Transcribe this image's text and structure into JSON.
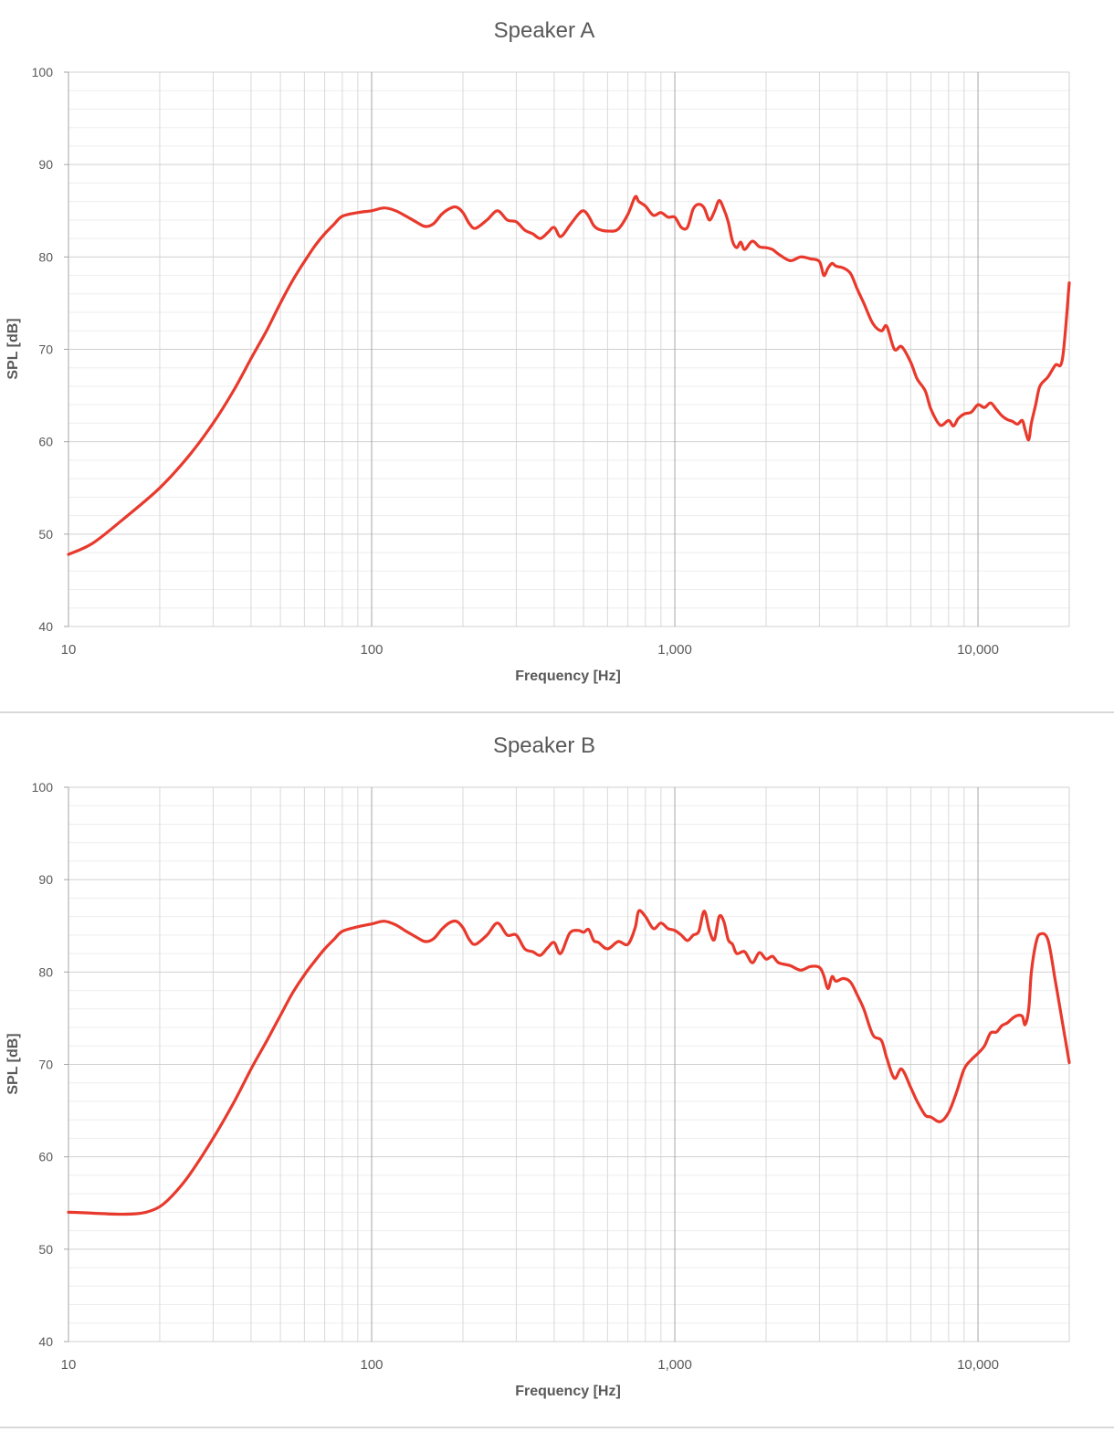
{
  "chart_data": [
    {
      "type": "line",
      "title": "Speaker A",
      "xlabel": "Frequency [Hz]",
      "ylabel": "SPL [dB]",
      "xscale": "log",
      "xlim": [
        10,
        20000
      ],
      "ylim": [
        40,
        100
      ],
      "x_ticks": [
        10,
        100,
        1000,
        10000
      ],
      "x_tick_labels": [
        "10",
        "100",
        "1,000",
        "10,000"
      ],
      "y_ticks": [
        40,
        50,
        60,
        70,
        80,
        90,
        100
      ],
      "y_tick_labels": [
        "40",
        "50",
        "60",
        "70",
        "80",
        "90",
        "100"
      ],
      "grid": true,
      "legend": "none",
      "line_color": "#e8392c",
      "series": [
        {
          "x": [
            10,
            12,
            15,
            20,
            25,
            30,
            35,
            40,
            45,
            50,
            55,
            60,
            65,
            70,
            75,
            80,
            90,
            100,
            110,
            120,
            130,
            140,
            150,
            160,
            170,
            180,
            190,
            200,
            210,
            220,
            240,
            260,
            280,
            300,
            320,
            340,
            360,
            380,
            400,
            420,
            450,
            480,
            500,
            520,
            540,
            560,
            600,
            650,
            700,
            740,
            760,
            800,
            850,
            900,
            950,
            1000,
            1050,
            1100,
            1150,
            1200,
            1250,
            1300,
            1350,
            1400,
            1450,
            1500,
            1550,
            1600,
            1650,
            1700,
            1800,
            1900,
            2000,
            2100,
            2200,
            2400,
            2600,
            2800,
            3000,
            3100,
            3200,
            3300,
            3400,
            3600,
            3800,
            4000,
            4200,
            4500,
            4800,
            5000,
            5300,
            5600,
            6000,
            6300,
            6700,
            7000,
            7500,
            8000,
            8300,
            8600,
            9000,
            9500,
            10000,
            10500,
            11000,
            11500,
            12000,
            12500,
            13000,
            13500,
            14000,
            14300,
            14700,
            15000,
            15500,
            16000,
            17000,
            18000,
            19000,
            20000
          ],
          "y": [
            47.8,
            49.0,
            51.5,
            55.0,
            58.5,
            62.0,
            65.5,
            69.0,
            72.0,
            75.0,
            77.5,
            79.5,
            81.2,
            82.5,
            83.5,
            84.4,
            84.8,
            85.0,
            85.3,
            85.0,
            84.4,
            83.8,
            83.3,
            83.6,
            84.6,
            85.2,
            85.4,
            84.8,
            83.6,
            83.1,
            84.0,
            85.0,
            84.0,
            83.8,
            82.9,
            82.5,
            82.0,
            82.6,
            83.2,
            82.2,
            83.4,
            84.6,
            85.0,
            84.4,
            83.4,
            83.0,
            82.8,
            83.0,
            84.6,
            86.5,
            86.0,
            85.5,
            84.5,
            84.8,
            84.3,
            84.3,
            83.2,
            83.2,
            85.2,
            85.7,
            85.3,
            84.0,
            84.9,
            86.1,
            85.2,
            83.8,
            81.7,
            81.0,
            81.6,
            80.8,
            81.7,
            81.1,
            81.0,
            80.8,
            80.3,
            79.6,
            80.0,
            79.8,
            79.5,
            78.0,
            78.8,
            79.3,
            79.0,
            78.8,
            78.2,
            76.5,
            75.0,
            72.8,
            72.0,
            72.5,
            70.0,
            70.3,
            68.6,
            66.8,
            65.5,
            63.5,
            61.8,
            62.3,
            61.7,
            62.5,
            63.0,
            63.2,
            64.0,
            63.7,
            64.2,
            63.5,
            62.8,
            62.4,
            62.2,
            61.9,
            62.3,
            61.3,
            60.2,
            62.0,
            64.0,
            66.0,
            67.0,
            68.3,
            69.0,
            77.2
          ]
        }
      ]
    },
    {
      "type": "line",
      "title": "Speaker B",
      "xlabel": "Frequency [Hz]",
      "ylabel": "SPL [dB]",
      "xscale": "log",
      "xlim": [
        10,
        20000
      ],
      "ylim": [
        40,
        100
      ],
      "x_ticks": [
        10,
        100,
        1000,
        10000
      ],
      "x_tick_labels": [
        "10",
        "100",
        "1,000",
        "10,000"
      ],
      "y_ticks": [
        40,
        50,
        60,
        70,
        80,
        90,
        100
      ],
      "y_tick_labels": [
        "40",
        "50",
        "60",
        "70",
        "80",
        "90",
        "100"
      ],
      "grid": true,
      "legend": "none",
      "line_color": "#e8392c",
      "series": [
        {
          "x": [
            10,
            12,
            14,
            16,
            18,
            20,
            22,
            25,
            30,
            35,
            40,
            45,
            50,
            55,
            60,
            65,
            70,
            75,
            80,
            90,
            100,
            110,
            120,
            130,
            140,
            150,
            160,
            170,
            180,
            190,
            200,
            210,
            220,
            240,
            260,
            280,
            300,
            320,
            340,
            360,
            380,
            400,
            420,
            450,
            480,
            500,
            520,
            540,
            560,
            600,
            650,
            700,
            740,
            760,
            800,
            850,
            900,
            950,
            1000,
            1050,
            1100,
            1150,
            1200,
            1250,
            1300,
            1350,
            1400,
            1450,
            1500,
            1550,
            1600,
            1700,
            1800,
            1900,
            2000,
            2100,
            2200,
            2400,
            2600,
            2800,
            3000,
            3100,
            3200,
            3300,
            3400,
            3600,
            3800,
            4000,
            4200,
            4500,
            4800,
            5000,
            5300,
            5600,
            6000,
            6300,
            6700,
            7000,
            7500,
            8000,
            8500,
            9000,
            9500,
            10000,
            10500,
            11000,
            11500,
            12000,
            12500,
            13000,
            13500,
            14000,
            14300,
            14700,
            15000,
            15500,
            16000,
            17000,
            18000,
            19000,
            20000
          ],
          "y": [
            54.0,
            53.9,
            53.8,
            53.8,
            54.0,
            54.6,
            55.8,
            58.0,
            62.0,
            65.8,
            69.5,
            72.5,
            75.3,
            77.8,
            79.7,
            81.2,
            82.5,
            83.5,
            84.4,
            84.9,
            85.2,
            85.5,
            85.1,
            84.4,
            83.8,
            83.3,
            83.6,
            84.6,
            85.3,
            85.5,
            84.8,
            83.5,
            83.0,
            84.0,
            85.3,
            84.0,
            84.0,
            82.5,
            82.2,
            81.8,
            82.6,
            83.2,
            82.0,
            84.2,
            84.5,
            84.3,
            84.6,
            83.4,
            83.2,
            82.5,
            83.3,
            83.0,
            84.8,
            86.6,
            86.0,
            84.7,
            85.3,
            84.7,
            84.5,
            84.0,
            83.4,
            84.0,
            84.4,
            86.6,
            84.5,
            83.5,
            86.0,
            85.5,
            83.5,
            83.0,
            82.0,
            82.2,
            81.0,
            82.1,
            81.4,
            81.7,
            81.0,
            80.7,
            80.2,
            80.6,
            80.5,
            79.6,
            78.2,
            79.5,
            79.0,
            79.3,
            78.9,
            77.5,
            76.0,
            73.2,
            72.6,
            70.7,
            68.5,
            69.5,
            67.5,
            66.0,
            64.5,
            64.3,
            63.8,
            64.8,
            67.0,
            69.5,
            70.5,
            71.2,
            72.0,
            73.4,
            73.5,
            74.2,
            74.5,
            75.0,
            75.3,
            75.2,
            74.3,
            76.0,
            80.0,
            83.0,
            84.1,
            83.5,
            79.0,
            74.5,
            70.2
          ]
        }
      ]
    }
  ]
}
